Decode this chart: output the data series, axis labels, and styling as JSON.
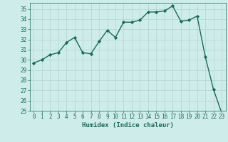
{
  "x": [
    0,
    1,
    2,
    3,
    4,
    5,
    6,
    7,
    8,
    9,
    10,
    11,
    12,
    13,
    14,
    15,
    16,
    17,
    18,
    19,
    20,
    21,
    22,
    23
  ],
  "y": [
    29.7,
    30.0,
    30.5,
    30.7,
    31.7,
    32.2,
    30.7,
    30.6,
    31.8,
    32.9,
    32.2,
    33.7,
    33.7,
    33.9,
    34.7,
    34.7,
    34.8,
    35.3,
    33.8,
    33.9,
    34.3,
    30.3,
    27.1,
    24.8
  ],
  "line_color": "#1a6b5a",
  "marker": "D",
  "marker_size": 2.2,
  "linewidth": 1.0,
  "xlabel": "Humidex (Indice chaleur)",
  "xlim": [
    -0.5,
    23.5
  ],
  "ylim": [
    25,
    35.6
  ],
  "yticks": [
    25,
    26,
    27,
    28,
    29,
    30,
    31,
    32,
    33,
    34,
    35
  ],
  "xticks": [
    0,
    1,
    2,
    3,
    4,
    5,
    6,
    7,
    8,
    9,
    10,
    11,
    12,
    13,
    14,
    15,
    16,
    17,
    18,
    19,
    20,
    21,
    22,
    23
  ],
  "bg_color": "#ceecea",
  "grid_color": "#b8d8d5",
  "font_color": "#1a6b5a",
  "tick_fontsize": 5.5,
  "xlabel_fontsize": 6.5
}
